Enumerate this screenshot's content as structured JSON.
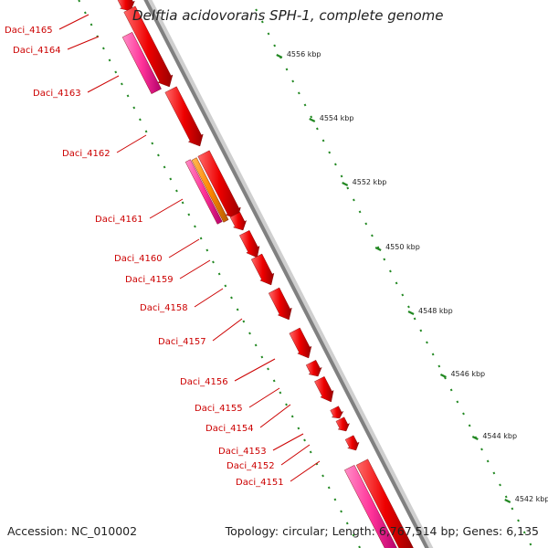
{
  "title": "Delftia acidovorans SPH-1, complete genome",
  "footer": {
    "accession": "Accession: NC_010002",
    "topology": "Topology: circular; Length: 6,767,514 bp; Genes: 6,135"
  },
  "colors": {
    "cds": "#ee0000",
    "cds_alt": "#ff3399",
    "cds_orange": "#ff8800",
    "backbone": "#888888",
    "dotted": "#228822",
    "label": "#cc0000"
  },
  "scale_ticks": [
    "4556 kbp",
    "4554 kbp",
    "4552 kbp",
    "4550 kbp",
    "4548 kbp",
    "4546 kbp",
    "4544 kbp",
    "4542 kbp"
  ],
  "genes": [
    {
      "name": "Daci_4165"
    },
    {
      "name": "Daci_4164"
    },
    {
      "name": "Daci_4163"
    },
    {
      "name": "Daci_4162"
    },
    {
      "name": "Daci_4161"
    },
    {
      "name": "Daci_4160"
    },
    {
      "name": "Daci_4159"
    },
    {
      "name": "Daci_4158"
    },
    {
      "name": "Daci_4157"
    },
    {
      "name": "Daci_4156"
    },
    {
      "name": "Daci_4155"
    },
    {
      "name": "Daci_4154"
    },
    {
      "name": "Daci_4153"
    },
    {
      "name": "Daci_4152"
    },
    {
      "name": "Daci_4151"
    }
  ]
}
